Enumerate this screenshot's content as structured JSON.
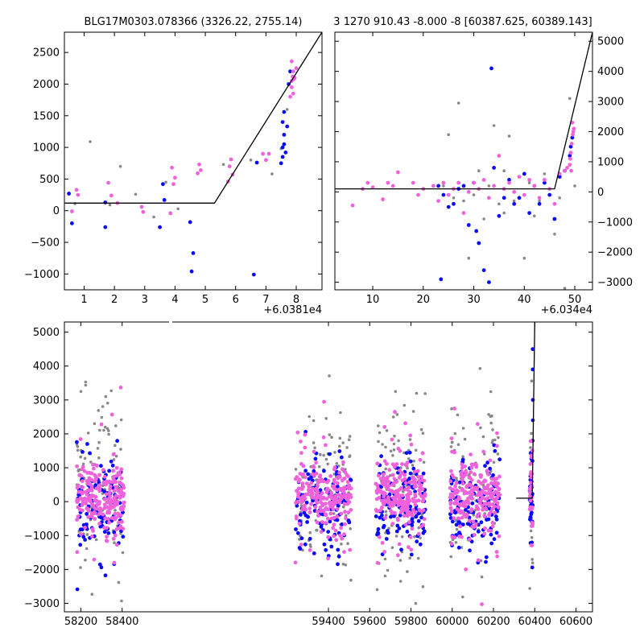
{
  "colors": {
    "gray": "#888888",
    "blue": "#0a0aff",
    "pink": "#f062dc",
    "line": "#000000"
  },
  "chart_data": [
    {
      "type": "scatter",
      "title": "BLG17M0303.078366 (3326.22, 2755.14)",
      "xlim": [
        0.35,
        8.85
      ],
      "ylim": [
        -1250,
        2820
      ],
      "xticks": [
        "1",
        "2",
        "3",
        "4",
        "5",
        "6",
        "7",
        "8"
      ],
      "yticks": [
        "2500",
        "2000",
        "1500",
        "1000",
        "500",
        "0",
        "−500",
        "−1000"
      ],
      "offset_label": "+6.0381e4",
      "model_line": [
        [
          0.35,
          120
        ],
        [
          5.3,
          120
        ],
        [
          8.85,
          2820
        ]
      ],
      "series": [
        {
          "color": "gray",
          "points": [
            [
              0.7,
              110
            ],
            [
              1.2,
              1090
            ],
            [
              1.85,
              90
            ],
            [
              2.2,
              700
            ],
            [
              2.7,
              260
            ],
            [
              3.3,
              -100
            ],
            [
              3.7,
              450
            ],
            [
              4.1,
              30
            ],
            [
              5.6,
              730
            ],
            [
              6.5,
              800
            ],
            [
              7.2,
              580
            ],
            [
              7.5,
              980
            ],
            [
              7.7,
              1600
            ]
          ]
        },
        {
          "color": "blue",
          "points": [
            [
              0.5,
              270
            ],
            [
              0.6,
              -200
            ],
            [
              1.7,
              130
            ],
            [
              1.7,
              -260
            ],
            [
              3.5,
              -260
            ],
            [
              3.6,
              420
            ],
            [
              3.65,
              170
            ],
            [
              4.5,
              -180
            ],
            [
              4.6,
              -670
            ],
            [
              4.55,
              -960
            ],
            [
              6.6,
              -1010
            ],
            [
              6.7,
              760
            ],
            [
              7.5,
              750
            ],
            [
              7.55,
              1000
            ],
            [
              7.6,
              1200
            ],
            [
              7.55,
              1400
            ],
            [
              7.6,
              1560
            ],
            [
              7.65,
              920
            ],
            [
              7.55,
              850
            ],
            [
              7.6,
              1050
            ],
            [
              7.7,
              1330
            ],
            [
              7.75,
              2000
            ],
            [
              7.8,
              2200
            ]
          ]
        },
        {
          "color": "pink",
          "points": [
            [
              0.6,
              -10
            ],
            [
              0.75,
              330
            ],
            [
              0.8,
              250
            ],
            [
              1.8,
              440
            ],
            [
              1.9,
              240
            ],
            [
              2.1,
              120
            ],
            [
              2.9,
              60
            ],
            [
              2.95,
              -20
            ],
            [
              3.9,
              680
            ],
            [
              3.95,
              420
            ],
            [
              4.0,
              520
            ],
            [
              3.85,
              -40
            ],
            [
              4.8,
              730
            ],
            [
              4.85,
              640
            ],
            [
              4.75,
              590
            ],
            [
              5.8,
              700
            ],
            [
              5.85,
              810
            ],
            [
              5.75,
              460
            ],
            [
              5.9,
              570
            ],
            [
              6.9,
              900
            ],
            [
              7.0,
              800
            ],
            [
              7.1,
              900
            ],
            [
              7.8,
              1800
            ],
            [
              7.85,
              1950
            ],
            [
              7.9,
              2200
            ],
            [
              7.85,
              2360
            ],
            [
              7.95,
              2100
            ],
            [
              7.85,
              2050
            ],
            [
              8.0,
              2250
            ],
            [
              7.9,
              1850
            ],
            [
              7.92,
              2080
            ],
            [
              7.88,
              2120
            ]
          ]
        }
      ]
    },
    {
      "type": "scatter",
      "title": "3 1270 910.43 -8.000 -8 [60387.625, 60389.143]",
      "xlim": [
        2.5,
        53.5
      ],
      "ylim": [
        -3250,
        5300
      ],
      "xticks": [
        "10",
        "20",
        "30",
        "40",
        "50"
      ],
      "yticks": [
        "5000",
        "4000",
        "3000",
        "2000",
        "1000",
        "0",
        "−1000",
        "−2000",
        "−3000"
      ],
      "offset_label": "+6.034e4",
      "model_line": [
        [
          2.5,
          100
        ],
        [
          46.0,
          100
        ],
        [
          53.5,
          5300
        ]
      ],
      "series": [
        {
          "color": "gray",
          "points": [
            [
              24,
              200
            ],
            [
              25,
              1900
            ],
            [
              26,
              -200
            ],
            [
              27,
              2950
            ],
            [
              28,
              -300
            ],
            [
              29,
              -2200
            ],
            [
              30,
              -100
            ],
            [
              31,
              700
            ],
            [
              32,
              -900
            ],
            [
              33,
              200
            ],
            [
              34,
              2200
            ],
            [
              35,
              -400
            ],
            [
              36,
              -700
            ],
            [
              37,
              1850
            ],
            [
              38,
              -300
            ],
            [
              40,
              -2200
            ],
            [
              41,
              300
            ],
            [
              42,
              -800
            ],
            [
              44,
              600
            ],
            [
              45,
              100
            ],
            [
              46,
              -1400
            ],
            [
              47,
              -200
            ],
            [
              48,
              -3200
            ],
            [
              49,
              3100
            ],
            [
              50,
              200
            ],
            [
              36,
              700
            ],
            [
              39,
              500
            ],
            [
              43,
              -300
            ]
          ]
        },
        {
          "color": "blue",
          "points": [
            [
              23,
              200
            ],
            [
              23.5,
              -2900
            ],
            [
              24,
              -100
            ],
            [
              25,
              -500
            ],
            [
              26,
              -400
            ],
            [
              27,
              100
            ],
            [
              28,
              200
            ],
            [
              29,
              -1100
            ],
            [
              30,
              300
            ],
            [
              30.5,
              -1300
            ],
            [
              31,
              -1700
            ],
            [
              32,
              -2600
            ],
            [
              33,
              -3000
            ],
            [
              33.5,
              4100
            ],
            [
              34,
              800
            ],
            [
              35,
              -800
            ],
            [
              36,
              -200
            ],
            [
              37,
              400
            ],
            [
              38,
              -400
            ],
            [
              39,
              -200
            ],
            [
              40,
              600
            ],
            [
              41,
              -700
            ],
            [
              42,
              200
            ],
            [
              43,
              -400
            ],
            [
              44,
              300
            ],
            [
              45,
              -100
            ],
            [
              46,
              -900
            ],
            [
              47,
              500
            ],
            [
              48,
              700
            ],
            [
              49,
              1200
            ],
            [
              49.2,
              1500
            ],
            [
              49.5,
              1800
            ]
          ]
        },
        {
          "color": "pink",
          "points": [
            [
              6,
              -450
            ],
            [
              8,
              100
            ],
            [
              9,
              300
            ],
            [
              10,
              150
            ],
            [
              12,
              -250
            ],
            [
              13,
              300
            ],
            [
              14,
              200
            ],
            [
              15,
              650
            ],
            [
              18,
              300
            ],
            [
              19,
              -100
            ],
            [
              20,
              100
            ],
            [
              22,
              200
            ],
            [
              23,
              -300
            ],
            [
              24,
              300
            ],
            [
              25,
              -100
            ],
            [
              26,
              100
            ],
            [
              27,
              300
            ],
            [
              28,
              -700
            ],
            [
              29,
              0
            ],
            [
              30,
              300
            ],
            [
              31,
              100
            ],
            [
              32,
              400
            ],
            [
              33,
              -200
            ],
            [
              34,
              200
            ],
            [
              35,
              1200
            ],
            [
              36,
              100
            ],
            [
              37,
              300
            ],
            [
              38,
              0
            ],
            [
              39,
              500
            ],
            [
              40,
              -100
            ],
            [
              41,
              400
            ],
            [
              42,
              200
            ],
            [
              43,
              -200
            ],
            [
              44,
              400
            ],
            [
              45,
              100
            ],
            [
              46,
              -400
            ],
            [
              47,
              600
            ],
            [
              48,
              700
            ],
            [
              48.5,
              800
            ],
            [
              49,
              900
            ],
            [
              49.2,
              1300
            ],
            [
              49.4,
              1600
            ],
            [
              49.6,
              1900
            ],
            [
              49.8,
              2100
            ],
            [
              49.5,
              2300
            ],
            [
              49.7,
              2000
            ],
            [
              49.3,
              700
            ],
            [
              49.1,
              1100
            ]
          ]
        }
      ]
    },
    {
      "type": "scatter",
      "title": "",
      "xlim": [
        58120,
        60680
      ],
      "ylim": [
        -3250,
        5300
      ],
      "xticks": [
        "58200",
        "58400",
        "59400",
        "59600",
        "59800",
        "60000",
        "60200",
        "60400",
        "60600"
      ],
      "yticks": [
        "5000",
        "4000",
        "3000",
        "2000",
        "1000",
        "0",
        "−1000",
        "−2000",
        "−3000"
      ],
      "model_line": [
        [
          60310,
          100
        ],
        [
          60388,
          100
        ],
        [
          60400,
          5300
        ]
      ],
      "series": [
        {
          "color": "gray",
          "points": []
        },
        {
          "color": "blue",
          "points": []
        },
        {
          "color": "pink",
          "points": []
        }
      ]
    }
  ]
}
